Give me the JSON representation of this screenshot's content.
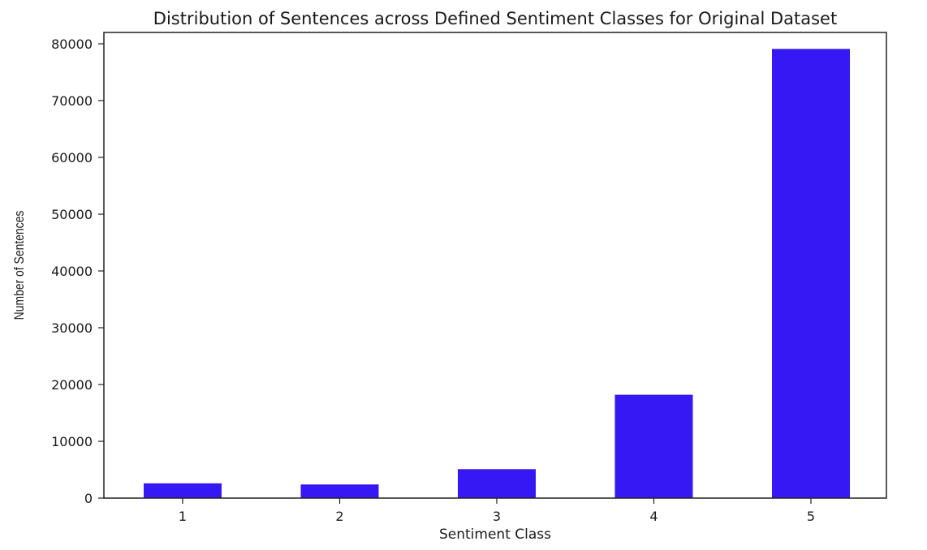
{
  "chart_data": {
    "type": "bar",
    "title": "Distribution of Sentences across Defined Sentiment Classes for Original Dataset",
    "xlabel": "Sentiment Class",
    "ylabel": "Number of Sentences",
    "categories": [
      "1",
      "2",
      "3",
      "4",
      "5"
    ],
    "values": [
      2600,
      2400,
      5100,
      18200,
      79100
    ],
    "ylim": [
      0,
      82000
    ],
    "yticks": [
      0,
      10000,
      20000,
      30000,
      40000,
      50000,
      60000,
      70000,
      80000
    ],
    "ytick_labels": [
      "0",
      "10000",
      "20000",
      "30000",
      "40000",
      "50000",
      "60000",
      "70000",
      "80000"
    ],
    "bar_color": "#3618f5",
    "grid": false,
    "legend": "none"
  }
}
